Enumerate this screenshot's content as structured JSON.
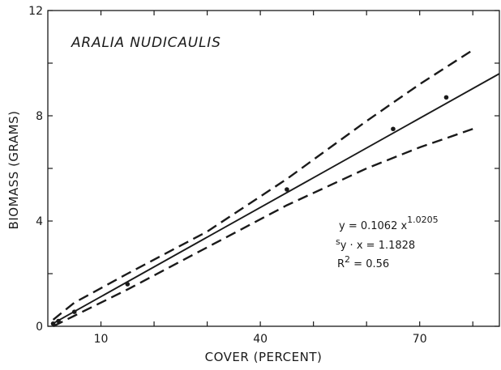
{
  "chart_data": {
    "type": "line",
    "title": "ARALIA NUDICAULIS",
    "xlabel": "COVER (PERCENT)",
    "ylabel": "BIOMASS (GRAMS)",
    "xlim": [
      0,
      85
    ],
    "ylim": [
      0,
      12
    ],
    "x_ticks": [
      10,
      20,
      30,
      40,
      50,
      60,
      70,
      80
    ],
    "x_tick_labels": [
      "10",
      "",
      "",
      "40",
      "",
      "",
      "70",
      ""
    ],
    "y_ticks": [
      0,
      2,
      4,
      6,
      8,
      10,
      12
    ],
    "y_tick_labels": [
      "0",
      "",
      "4",
      "",
      "8",
      "",
      "12"
    ],
    "grid": false,
    "legend": "none",
    "series": [
      {
        "style": "solid",
        "x": [
          1,
          85
        ],
        "y": [
          0.11,
          9.6
        ],
        "markers": {
          "x": [
            1,
            2,
            5,
            15,
            45,
            65,
            75
          ],
          "y": [
            0.1,
            0.2,
            0.55,
            1.6,
            5.2,
            7.5,
            8.7
          ]
        }
      },
      {
        "style": "dashed",
        "x": [
          1,
          5,
          15,
          30,
          45,
          60,
          70,
          80
        ],
        "y": [
          0.25,
          0.9,
          2.0,
          3.6,
          5.6,
          7.8,
          9.2,
          10.5
        ]
      },
      {
        "style": "dashed",
        "x": [
          1,
          5,
          15,
          30,
          45,
          60,
          70,
          80
        ],
        "y": [
          0.0,
          0.4,
          1.4,
          3.0,
          4.6,
          6.0,
          6.8,
          7.5
        ]
      }
    ],
    "equation": {
      "line1_text": "y = 0.1062 x",
      "line1_exp": "1.0205",
      "line2_prefix": "s",
      "line2_sub": "y · x",
      "line2_rest": " = 1.1828",
      "line3_text": "R",
      "line3_exp": "2",
      "line3_rest": " = 0.56"
    }
  }
}
